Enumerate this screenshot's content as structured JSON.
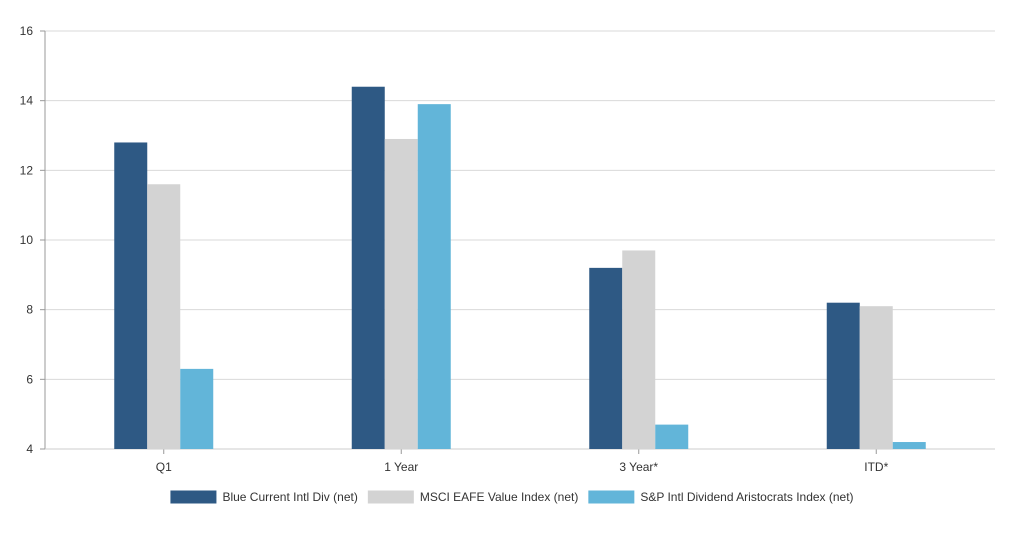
{
  "chart_data": {
    "type": "bar",
    "categories": [
      "Q1",
      "1 Year",
      "3 Year*",
      "ITD*"
    ],
    "series": [
      {
        "name": "Blue Current Intl Div (net)",
        "color": "#2e5984",
        "values": [
          12.8,
          14.4,
          9.2,
          8.2
        ]
      },
      {
        "name": "MSCI EAFE Value Index (net)",
        "color": "#d3d3d3",
        "values": [
          11.6,
          12.9,
          9.7,
          8.1
        ]
      },
      {
        "name": "S&P Intl Dividend Aristocrats Index (net)",
        "color": "#62b5d9",
        "values": [
          6.3,
          13.9,
          4.7,
          4.2
        ]
      }
    ],
    "ylim": [
      4,
      16
    ],
    "yticks": [
      4,
      6,
      8,
      10,
      12,
      14,
      16
    ],
    "grid": true,
    "legend": "bottom"
  }
}
